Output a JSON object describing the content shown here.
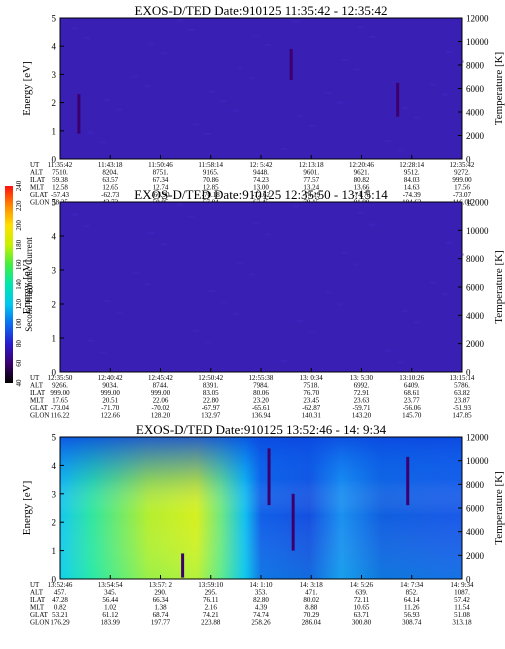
{
  "colors": {
    "background": "#ffffff",
    "colorbar_stops": [
      "#000000",
      "#3b006e",
      "#2a1bd0",
      "#0a6df0",
      "#00c8f0",
      "#00e6b0",
      "#40ee40",
      "#c8f000",
      "#ffe000",
      "#ff8800",
      "#ff1010"
    ],
    "panel_fill_quiet": "#3a1fb4"
  },
  "colorbar": {
    "label": "Second Harmonic Current",
    "ticks": [
      "40",
      "60",
      "80",
      "100",
      "120",
      "140",
      "160",
      "180",
      "200",
      "220",
      "240"
    ]
  },
  "chart_data": [
    {
      "type": "heatmap",
      "title": "EXOS-D/TED   Date:910125  11:35:42 - 12:35:42",
      "ylabel": "Energy [eV]",
      "ylabel_right": "Temperature [K]",
      "ylim": [
        0,
        5
      ],
      "ylim_right": [
        0,
        12000
      ],
      "yticks": [
        "0",
        "1",
        "2",
        "3",
        "4",
        "5"
      ],
      "yticks_right": [
        "0",
        "2000",
        "4000",
        "6000",
        "8000",
        "10000",
        "12000"
      ],
      "background_level": 90,
      "streaks": [
        {
          "x": 0.047,
          "y0": 0.9,
          "y1": 2.3,
          "level": 60
        },
        {
          "x": 0.575,
          "y0": 2.8,
          "y1": 3.9,
          "level": 55
        },
        {
          "x": 0.84,
          "y0": 1.5,
          "y1": 2.7,
          "level": 50
        }
      ],
      "orbit_labels": [
        "UT",
        "ALT",
        "ILAT",
        "MLT",
        "GLAT",
        "GLON"
      ],
      "orbit_columns": [
        [
          "11:35:42",
          "7510.",
          "59.38",
          "12.58",
          "-57.43",
          "38.35"
        ],
        [
          "11:43:18",
          "8204.",
          "63.57",
          "12.65",
          "-62.73",
          "43.73"
        ],
        [
          "11:50:46",
          "8751.",
          "67.34",
          "12.74",
          "-66.90",
          "50.05"
        ],
        [
          "11:58:14",
          "9165.",
          "70.86",
          "12.85",
          "-70.18",
          "57.84"
        ],
        [
          "12: 5:42",
          "9448.",
          "74.23",
          "13.00",
          "-72.62",
          "67.45"
        ],
        [
          "12:13:18",
          "9601.",
          "77.57",
          "13.24",
          "-74.19",
          "79.15"
        ],
        [
          "12:20:46",
          "9621.",
          "80.82",
          "13.66",
          "-74.78",
          "91.90"
        ],
        [
          "12:28:14",
          "9512.",
          "84.03",
          "14.63",
          "-74.39",
          "104.63"
        ],
        [
          "12:35:42",
          "9272.",
          "999.00",
          "17.56",
          "-73.07",
          "116.04"
        ]
      ]
    },
    {
      "type": "heatmap",
      "title": "EXOS-D/TED   Date:910125  12:35:50 - 13:15:14",
      "ylabel": "Energy [eV]",
      "ylabel_right": "Temperature [K]",
      "ylim": [
        0,
        5
      ],
      "ylim_right": [
        0,
        12000
      ],
      "yticks": [
        "0",
        "1",
        "2",
        "3",
        "4",
        "5"
      ],
      "yticks_right": [
        "0",
        "2000",
        "4000",
        "6000",
        "8000",
        "10000",
        "12000"
      ],
      "background_level": 90,
      "streaks": [],
      "orbit_labels": [
        "UT",
        "ALT",
        "ILAT",
        "MLT",
        "GLAT",
        "GLON"
      ],
      "orbit_columns": [
        [
          "12:35:50",
          "9266.",
          "999.00",
          "17.65",
          "-73.04",
          "116.22"
        ],
        [
          "12:40:42",
          "9034.",
          "999.00",
          "20.51",
          "-71.70",
          "122.66"
        ],
        [
          "12:45:42",
          "8744.",
          "999.00",
          "22.06",
          "-70.02",
          "128.20"
        ],
        [
          "12:50:42",
          "8391.",
          "83.05",
          "22.80",
          "-67.97",
          "132.97"
        ],
        [
          "12:55:38",
          "7984.",
          "80.06",
          "23.20",
          "-65.61",
          "136.94"
        ],
        [
          "13: 0:34",
          "7518.",
          "76.70",
          "23.45",
          "-62.87",
          "140.31"
        ],
        [
          "13: 5:30",
          "6992.",
          "72.91",
          "23.63",
          "-59.71",
          "143.20"
        ],
        [
          "13:10:26",
          "6409.",
          "68.61",
          "23.77",
          "-56.06",
          "145.70"
        ],
        [
          "13:15:14",
          "5786.",
          "63.82",
          "23.87",
          "-51.93",
          "147.85"
        ]
      ]
    },
    {
      "type": "heatmap",
      "title": "EXOS-D/TED   Date:910125  13:52:46 - 14: 9:34",
      "ylabel": "Energy [eV]",
      "ylabel_right": "Temperature [K]",
      "ylim": [
        0,
        5
      ],
      "ylim_right": [
        0,
        12000
      ],
      "yticks": [
        "0",
        "1",
        "2",
        "3",
        "4",
        "5"
      ],
      "yticks_right": [
        "0",
        "2000",
        "4000",
        "6000",
        "8000",
        "10000",
        "12000"
      ],
      "streaks": [
        {
          "x": 0.305,
          "y0": 0.05,
          "y1": 0.9,
          "level": 60
        },
        {
          "x": 0.52,
          "y0": 2.6,
          "y1": 4.6,
          "level": 55
        },
        {
          "x": 0.58,
          "y0": 1.0,
          "y1": 3.0,
          "level": 55
        },
        {
          "x": 0.865,
          "y0": 2.6,
          "y1": 4.3,
          "level": 55
        }
      ],
      "orbit_labels": [
        "UT",
        "ALT",
        "ILAT",
        "MLT",
        "GLAT",
        "GLON"
      ],
      "orbit_columns": [
        [
          "13:52:46",
          "457.",
          "47.28",
          "0.82",
          "53.21",
          "176.29"
        ],
        [
          "13:54:54",
          "345.",
          "56.44",
          "1.02",
          "61.12",
          "183.99"
        ],
        [
          "13:57: 2",
          "290.",
          "66.34",
          "1.38",
          "68.74",
          "197.77"
        ],
        [
          "13:59:10",
          "295.",
          "76.11",
          "2.16",
          "74.21",
          "223.88"
        ],
        [
          "14: 1:10",
          "353.",
          "82.80",
          "4.39",
          "74.74",
          "258.26"
        ],
        [
          "14: 3:18",
          "471.",
          "80.02",
          "8.88",
          "70.29",
          "286.04"
        ],
        [
          "14: 5:26",
          "639.",
          "72.11",
          "10.65",
          "63.71",
          "300.80"
        ],
        [
          "14: 7:34",
          "852.",
          "64.14",
          "11.26",
          "56.93",
          "308.74"
        ],
        [
          "14: 9:34",
          "1087.",
          "57.42",
          "11.54",
          "51.08",
          "313.18"
        ]
      ]
    }
  ]
}
